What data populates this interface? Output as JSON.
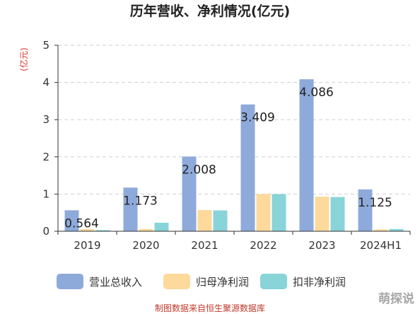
{
  "chart_data": {
    "type": "bar",
    "title": "历年营收、净利情况(亿元)",
    "ylabel": "(亿元)",
    "categories": [
      "2019",
      "2020",
      "2021",
      "2022",
      "2023",
      "2024H1"
    ],
    "ylim": [
      0,
      5
    ],
    "yticks": [
      "0",
      "1",
      "2",
      "3",
      "4",
      "5"
    ],
    "grid": "horizontal-dashed",
    "legend_position": "bottom",
    "series": [
      {
        "name": "营业总收入",
        "color": "#8eaadb",
        "values": [
          0.564,
          1.173,
          2.008,
          3.409,
          4.086,
          1.125
        ]
      },
      {
        "name": "归母净利润",
        "color": "#fdd99b",
        "values": [
          0.06,
          0.06,
          0.57,
          1.0,
          0.93,
          0.05
        ]
      },
      {
        "name": "扣非净利润",
        "color": "#88d4d8",
        "values": [
          0.03,
          0.23,
          0.56,
          1.0,
          0.92,
          0.06
        ]
      }
    ],
    "data_labels": [
      "0.564",
      "1.173",
      "2.008",
      "3.409",
      "4.086",
      "1.125"
    ]
  },
  "source": "制图数据来自恒生聚源数据库",
  "watermark": "萌探说"
}
